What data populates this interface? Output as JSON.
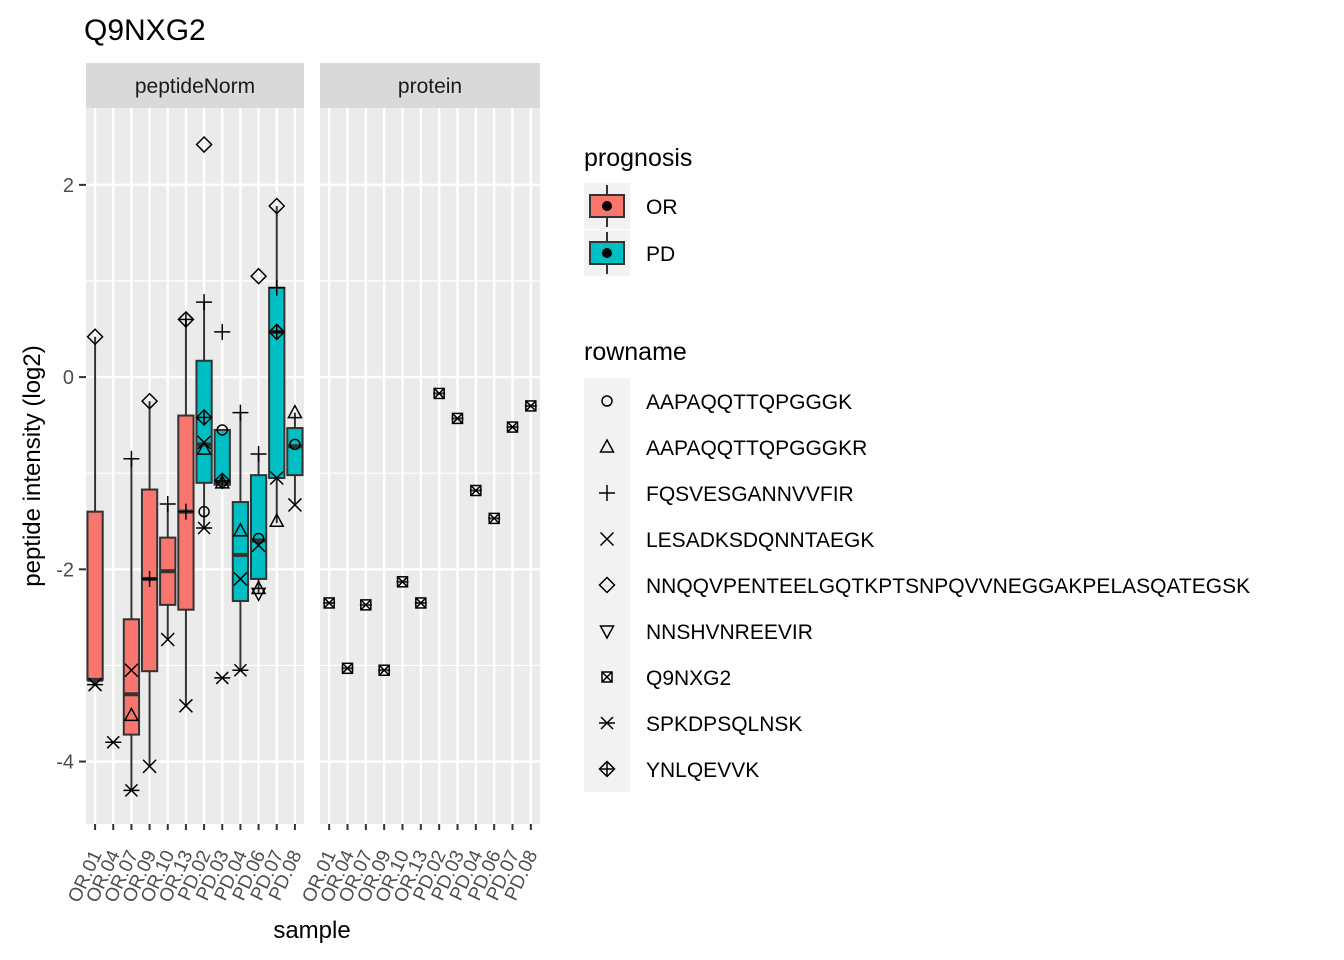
{
  "chart_data": {
    "type": "box",
    "title": "Q9NXG2",
    "xlabel": "sample",
    "ylabel": "peptide intensity (log2)",
    "ylim": [
      -4.65,
      2.8
    ],
    "yticks": [
      -4,
      -2,
      0,
      2
    ],
    "grid": true,
    "facets": [
      "peptideNorm",
      "protein"
    ],
    "categories": [
      "OR.01",
      "OR.04",
      "OR.07",
      "OR.09",
      "OR.10",
      "OR.13",
      "PD.02",
      "PD.03",
      "PD.04",
      "PD.06",
      "PD.07",
      "PD.08"
    ],
    "groups": [
      "OR",
      "OR",
      "OR",
      "OR",
      "OR",
      "OR",
      "PD",
      "PD",
      "PD",
      "PD",
      "PD",
      "PD"
    ],
    "legend_placement": "right",
    "legend_fill": {
      "title": "prognosis",
      "entries": [
        {
          "label": "OR",
          "color": "#F8766D"
        },
        {
          "label": "PD",
          "color": "#00BFC4"
        }
      ]
    },
    "legend_shape": {
      "title": "rowname",
      "entries": [
        {
          "label": "AAPAQQTTQPGGGK",
          "shape": "circle"
        },
        {
          "label": "AAPAQQTTQPGGGKR",
          "shape": "triangle"
        },
        {
          "label": "FQSVESGANNVVFIR",
          "shape": "plus"
        },
        {
          "label": "LESADKSDQNNTAEGK",
          "shape": "cross"
        },
        {
          "label": "NNQQVPENTEELGQTKPTSNPQVVNEGGAKPELASQATEGSK",
          "shape": "diamond"
        },
        {
          "label": "NNSHVNREEVIR",
          "shape": "triangle-down"
        },
        {
          "label": "Q9NXG2",
          "shape": "square-cross"
        },
        {
          "label": "SPKDPSQLNSK",
          "shape": "asterisk"
        },
        {
          "label": "YNLQEVVK",
          "shape": "diamond-plus"
        }
      ]
    },
    "boxes": [
      {
        "sample": "OR.01",
        "min": -3.2,
        "q1": -3.15,
        "median": -3.15,
        "q3": -1.4,
        "max": 0.42
      },
      {
        "sample": "OR.07",
        "min": -4.3,
        "q1": -3.72,
        "median": -3.3,
        "q3": -2.52,
        "max": -0.85
      },
      {
        "sample": "OR.09",
        "min": -4.05,
        "q1": -3.06,
        "median": -2.1,
        "q3": -1.17,
        "max": -0.25
      },
      {
        "sample": "OR.10",
        "min": -2.73,
        "q1": -2.37,
        "median": -2.02,
        "q3": -1.67,
        "max": -1.32
      },
      {
        "sample": "OR.13",
        "min": -3.42,
        "q1": -2.42,
        "median": -1.4,
        "q3": -0.4,
        "max": 0.6
      },
      {
        "sample": "PD.02",
        "min": -1.57,
        "q1": -1.1,
        "median": -0.7,
        "q3": 0.17,
        "max": 0.78
      },
      {
        "sample": "PD.03",
        "min": -1.12,
        "q1": -1.12,
        "median": -1.1,
        "q3": -0.55,
        "max": -0.55
      },
      {
        "sample": "PD.04",
        "min": -3.05,
        "q1": -2.33,
        "median": -1.85,
        "q3": -1.3,
        "max": -0.37
      },
      {
        "sample": "PD.06",
        "min": -2.25,
        "q1": -2.1,
        "median": -1.7,
        "q3": -1.02,
        "max": -0.8
      },
      {
        "sample": "PD.07",
        "min": -1.52,
        "q1": -1.05,
        "median": 0.47,
        "q3": 0.93,
        "max": 1.78
      },
      {
        "sample": "PD.08",
        "min": -1.33,
        "q1": -1.02,
        "median": -0.72,
        "q3": -0.53,
        "max": -0.37
      }
    ],
    "points_peptideNorm": [
      {
        "sample": "OR.01",
        "peptide": "NNQQVPENTEELGQTKPTSNPQVVNEGGAKPELASQATEGSK",
        "y": 0.42
      },
      {
        "sample": "OR.01",
        "peptide": "LESADKSDQNNTAEGK",
        "y": -3.2
      },
      {
        "sample": "OR.01",
        "peptide": "SPKDPSQLNSK",
        "y": -3.2
      },
      {
        "sample": "OR.04",
        "peptide": "SPKDPSQLNSK",
        "y": -3.8
      },
      {
        "sample": "OR.07",
        "peptide": "FQSVESGANNVVFIR",
        "y": -0.85
      },
      {
        "sample": "OR.07",
        "peptide": "LESADKSDQNNTAEGK",
        "y": -3.05
      },
      {
        "sample": "OR.07",
        "peptide": "AAPAQQTTQPGGGKR",
        "y": -3.52
      },
      {
        "sample": "OR.07",
        "peptide": "SPKDPSQLNSK",
        "y": -4.3
      },
      {
        "sample": "OR.09",
        "peptide": "NNQQVPENTEELGQTKPTSNPQVVNEGGAKPELASQATEGSK",
        "y": -0.25
      },
      {
        "sample": "OR.09",
        "peptide": "FQSVESGANNVVFIR",
        "y": -2.1
      },
      {
        "sample": "OR.09",
        "peptide": "LESADKSDQNNTAEGK",
        "y": -4.05
      },
      {
        "sample": "OR.10",
        "peptide": "FQSVESGANNVVFIR",
        "y": -1.32
      },
      {
        "sample": "OR.10",
        "peptide": "LESADKSDQNNTAEGK",
        "y": -2.73
      },
      {
        "sample": "OR.13",
        "peptide": "YNLQEVVK",
        "y": 0.6
      },
      {
        "sample": "OR.13",
        "peptide": "FQSVESGANNVVFIR",
        "y": -1.4
      },
      {
        "sample": "OR.13",
        "peptide": "LESADKSDQNNTAEGK",
        "y": -3.42
      },
      {
        "sample": "PD.02",
        "peptide": "NNQQVPENTEELGQTKPTSNPQVVNEGGAKPELASQATEGSK",
        "y": 2.42
      },
      {
        "sample": "PD.02",
        "peptide": "FQSVESGANNVVFIR",
        "y": 0.78
      },
      {
        "sample": "PD.02",
        "peptide": "YNLQEVVK",
        "y": -0.42
      },
      {
        "sample": "PD.02",
        "peptide": "LESADKSDQNNTAEGK",
        "y": -0.68
      },
      {
        "sample": "PD.02",
        "peptide": "AAPAQQTTQPGGGKR",
        "y": -0.75
      },
      {
        "sample": "PD.02",
        "peptide": "AAPAQQTTQPGGGK",
        "y": -1.4
      },
      {
        "sample": "PD.02",
        "peptide": "SPKDPSQLNSK",
        "y": -1.57
      },
      {
        "sample": "PD.03",
        "peptide": "FQSVESGANNVVFIR",
        "y": 0.47
      },
      {
        "sample": "PD.03",
        "peptide": "AAPAQQTTQPGGGK",
        "y": -0.55
      },
      {
        "sample": "PD.03",
        "peptide": "YNLQEVVK",
        "y": -1.08
      },
      {
        "sample": "PD.03",
        "peptide": "AAPAQQTTQPGGGKR",
        "y": -1.1
      },
      {
        "sample": "PD.03",
        "peptide": "SPKDPSQLNSK",
        "y": -3.13
      },
      {
        "sample": "PD.04",
        "peptide": "FQSVESGANNVVFIR",
        "y": -0.37
      },
      {
        "sample": "PD.04",
        "peptide": "AAPAQQTTQPGGGKR",
        "y": -1.6
      },
      {
        "sample": "PD.04",
        "peptide": "LESADKSDQNNTAEGK",
        "y": -2.1
      },
      {
        "sample": "PD.04",
        "peptide": "SPKDPSQLNSK",
        "y": -3.05
      },
      {
        "sample": "PD.06",
        "peptide": "NNQQVPENTEELGQTKPTSNPQVVNEGGAKPELASQATEGSK",
        "y": 1.05
      },
      {
        "sample": "PD.06",
        "peptide": "FQSVESGANNVVFIR",
        "y": -0.8
      },
      {
        "sample": "PD.06",
        "peptide": "AAPAQQTTQPGGGK",
        "y": -1.68
      },
      {
        "sample": "PD.06",
        "peptide": "LESADKSDQNNTAEGK",
        "y": -1.75
      },
      {
        "sample": "PD.06",
        "peptide": "AAPAQQTTQPGGGKR",
        "y": -2.2
      },
      {
        "sample": "PD.06",
        "peptide": "NNSHVNREEVIR",
        "y": -2.25
      },
      {
        "sample": "PD.07",
        "peptide": "NNQQVPENTEELGQTKPTSNPQVVNEGGAKPELASQATEGSK",
        "y": 1.78
      },
      {
        "sample": "PD.07",
        "peptide": "FQSVESGANNVVFIR",
        "y": 0.93
      },
      {
        "sample": "PD.07",
        "peptide": "YNLQEVVK",
        "y": 0.47
      },
      {
        "sample": "PD.07",
        "peptide": "LESADKSDQNNTAEGK",
        "y": -1.05
      },
      {
        "sample": "PD.07",
        "peptide": "AAPAQQTTQPGGGKR",
        "y": -1.5
      },
      {
        "sample": "PD.08",
        "peptide": "AAPAQQTTQPGGGKR",
        "y": -0.37
      },
      {
        "sample": "PD.08",
        "peptide": "AAPAQQTTQPGGGK",
        "y": -0.7
      },
      {
        "sample": "PD.08",
        "peptide": "LESADKSDQNNTAEGK",
        "y": -1.33
      }
    ],
    "points_protein": [
      {
        "sample": "OR.01",
        "y": -2.35
      },
      {
        "sample": "OR.04",
        "y": -3.03
      },
      {
        "sample": "OR.07",
        "y": -2.37
      },
      {
        "sample": "OR.09",
        "y": -3.05
      },
      {
        "sample": "OR.10",
        "y": -2.13
      },
      {
        "sample": "OR.13",
        "y": -2.35
      },
      {
        "sample": "PD.02",
        "y": -0.17
      },
      {
        "sample": "PD.03",
        "y": -0.43
      },
      {
        "sample": "PD.04",
        "y": -1.18
      },
      {
        "sample": "PD.06",
        "y": -1.47
      },
      {
        "sample": "PD.07",
        "y": -0.52
      },
      {
        "sample": "PD.08",
        "y": -0.3
      }
    ]
  }
}
